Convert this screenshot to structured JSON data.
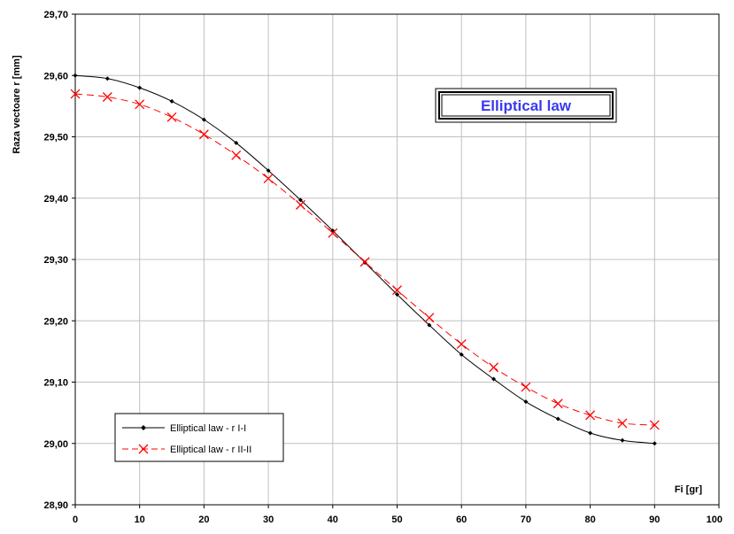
{
  "chart_data": {
    "type": "line",
    "title": "Elliptical law",
    "xlabel": "Fi [gr]",
    "ylabel": "Raza vectoare r [mm]",
    "xlim": [
      0,
      100
    ],
    "ylim": [
      28.9,
      29.7
    ],
    "x_ticks": [
      "0",
      "10",
      "20",
      "30",
      "40",
      "50",
      "60",
      "70",
      "80",
      "90",
      "100"
    ],
    "y_ticks": [
      "28,90",
      "29,00",
      "29,10",
      "29,20",
      "29,30",
      "29,40",
      "29,50",
      "29,60",
      "29,70"
    ],
    "grid": true,
    "legend_position": "bottom-left",
    "x": [
      0,
      5,
      10,
      15,
      20,
      25,
      30,
      35,
      40,
      45,
      50,
      55,
      60,
      65,
      70,
      75,
      80,
      85,
      90
    ],
    "series": [
      {
        "name": "Elliptical law   - r I-I",
        "color": "#000000",
        "marker": "diamond",
        "line": "solid",
        "values": [
          29.6,
          29.595,
          29.58,
          29.558,
          29.528,
          29.49,
          29.445,
          29.397,
          29.347,
          29.295,
          29.243,
          29.193,
          29.145,
          29.105,
          29.068,
          29.04,
          29.017,
          29.005,
          29.0
        ]
      },
      {
        "name": "Elliptical law   - r II-II",
        "color": "#ff0000",
        "marker": "x",
        "line": "dashed",
        "values": [
          29.57,
          29.565,
          29.553,
          29.532,
          29.504,
          29.47,
          29.432,
          29.389,
          29.343,
          29.296,
          29.25,
          29.205,
          29.162,
          29.124,
          29.092,
          29.065,
          29.046,
          29.033,
          29.03
        ]
      }
    ],
    "colors": {
      "title_text": "#3a3af0",
      "grid": "#c0c0c0",
      "plot_border": "#000000"
    }
  }
}
